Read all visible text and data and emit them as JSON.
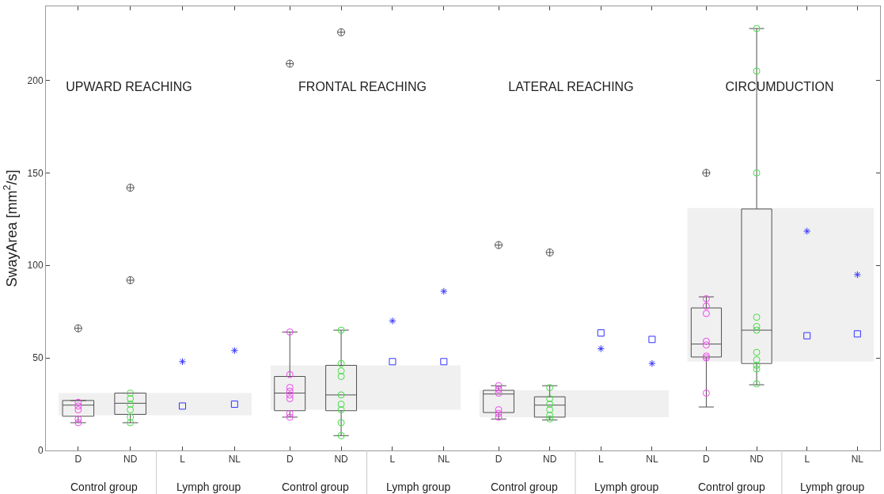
{
  "chart_data": [
    {
      "type": "box",
      "title": "UPWARD REACHING",
      "ylabel": "SwayArea [mm$^{2}$/s]",
      "categories": [
        "D",
        "ND",
        "L",
        "NL"
      ],
      "ylim": [
        0,
        240
      ],
      "yticks": [
        0,
        50,
        100,
        150,
        200
      ],
      "grid": false,
      "annotations": [
        "Control group",
        "Lymph group"
      ],
      "bands": [
        {
          "axis": "y",
          "from": 19,
          "to": 31,
          "color": "#f0f0f0"
        }
      ],
      "series": [
        {
          "color": "#505050",
          "boxes": [
            {
              "low": 15,
              "q1": 18.5,
              "median": 24.5,
              "q3": 27,
              "high": 27,
              "outliers": [
                66
              ]
            },
            {
              "low": 15,
              "q1": 19.5,
              "median": 25.5,
              "q3": 31,
              "high": 31,
              "outliers": [
                92,
                142
              ]
            },
            null,
            null
          ]
        },
        {
          "type": "scatter",
          "color": "#ee44ee",
          "marker": "circle",
          "x": [
            "D",
            "D",
            "D",
            "D",
            "D"
          ],
          "values": [
            26,
            24,
            22,
            17,
            15
          ]
        },
        {
          "type": "scatter",
          "color": "#44dd44",
          "marker": "circle",
          "x": [
            "ND",
            "ND",
            "ND",
            "ND",
            "ND",
            "ND"
          ],
          "values": [
            31,
            28,
            25,
            22,
            18,
            15
          ]
        },
        {
          "type": "scatter",
          "color": "#3333ff",
          "marker": "cross",
          "x": [
            "L",
            "NL"
          ],
          "values": [
            48,
            54
          ]
        },
        {
          "type": "scatter",
          "color": "#3333ff",
          "marker": "square",
          "x": [
            "L",
            "NL"
          ],
          "values": [
            24,
            25
          ]
        }
      ]
    },
    {
      "type": "box",
      "title": "FRONTAL REACHING",
      "categories": [
        "D",
        "ND",
        "L",
        "NL"
      ],
      "ylim": [
        0,
        240
      ],
      "yticks": [
        0,
        50,
        100,
        150,
        200
      ],
      "tick_labels": "x",
      "grid": false,
      "annotations": [
        "Control group",
        "Lymph group"
      ],
      "bands": [
        {
          "axis": "y",
          "from": 22,
          "to": 46,
          "color": "#f0f0f0"
        }
      ],
      "series": [
        {
          "color": "#505050",
          "boxes": [
            {
              "low": 18,
              "q1": 21.5,
              "median": 31,
              "q3": 40,
              "high": 64,
              "outliers": [
                209
              ]
            },
            {
              "low": 8,
              "q1": 21.5,
              "median": 30,
              "q3": 46,
              "high": 65,
              "outliers": [
                226
              ]
            },
            null,
            null
          ]
        },
        {
          "type": "scatter",
          "color": "#ee44ee",
          "marker": "circle",
          "x": [
            "D",
            "D",
            "D",
            "D",
            "D",
            "D",
            "D",
            "D"
          ],
          "values": [
            64,
            41,
            34,
            32,
            30,
            28,
            20,
            18
          ]
        },
        {
          "type": "scatter",
          "color": "#44dd44",
          "marker": "circle",
          "x": [
            "ND",
            "ND",
            "ND",
            "ND",
            "ND",
            "ND",
            "ND",
            "ND",
            "ND"
          ],
          "values": [
            65,
            47,
            43,
            40,
            30,
            25,
            22,
            15,
            8
          ]
        },
        {
          "type": "scatter",
          "color": "#3333ff",
          "marker": "cross",
          "x": [
            "L",
            "NL"
          ],
          "values": [
            70,
            86
          ]
        },
        {
          "type": "scatter",
          "color": "#3333ff",
          "marker": "square",
          "x": [
            "L",
            "NL"
          ],
          "values": [
            48,
            48
          ]
        }
      ]
    },
    {
      "type": "box",
      "title": "LATERAL REACHING",
      "categories": [
        "D",
        "ND",
        "L",
        "NL"
      ],
      "ylim": [
        0,
        240
      ],
      "yticks": [
        0,
        50,
        100,
        150,
        200
      ],
      "tick_labels": "x",
      "grid": false,
      "annotations": [
        "Control group",
        "Lymph group"
      ],
      "bands": [
        {
          "axis": "y",
          "from": 18,
          "to": 32.5,
          "color": "#f0f0f0"
        }
      ],
      "series": [
        {
          "color": "#505050",
          "boxes": [
            {
              "low": 17,
              "q1": 20.5,
              "median": 30.5,
              "q3": 32.5,
              "high": 35,
              "outliers": [
                111
              ]
            },
            {
              "low": 16.5,
              "q1": 18,
              "median": 24.5,
              "q3": 29,
              "high": 35,
              "outliers": [
                107
              ]
            },
            null,
            null
          ]
        },
        {
          "type": "scatter",
          "color": "#ee44ee",
          "marker": "circle",
          "x": [
            "D",
            "D",
            "D",
            "D",
            "D",
            "D"
          ],
          "values": [
            35,
            33,
            31,
            22,
            20,
            18
          ]
        },
        {
          "type": "scatter",
          "color": "#44dd44",
          "marker": "circle",
          "x": [
            "ND",
            "ND",
            "ND",
            "ND",
            "ND",
            "ND"
          ],
          "values": [
            34,
            28,
            25,
            22,
            19,
            17
          ]
        },
        {
          "type": "scatter",
          "color": "#3333ff",
          "marker": "cross",
          "x": [
            "L",
            "NL"
          ],
          "values": [
            55,
            47
          ]
        },
        {
          "type": "scatter",
          "color": "#3333ff",
          "marker": "square",
          "x": [
            "L",
            "NL"
          ],
          "values": [
            63.5,
            60
          ]
        }
      ]
    },
    {
      "type": "box",
      "title": "CIRCUMDUCTION",
      "categories": [
        "D",
        "ND",
        "L",
        "NL"
      ],
      "ylim": [
        0,
        240
      ],
      "yticks": [
        0,
        50,
        100,
        150,
        200
      ],
      "tick_labels": "x",
      "grid": false,
      "annotations": [
        "Control group",
        "Lymph group"
      ],
      "bands": [
        {
          "axis": "y",
          "from": 48,
          "to": 131,
          "color": "#f0f0f0"
        }
      ],
      "series": [
        {
          "color": "#505050",
          "boxes": [
            {
              "low": 23.5,
              "q1": 50.5,
              "median": 57.5,
              "q3": 77,
              "high": 83,
              "outliers": [
                150
              ]
            },
            {
              "low": 35.5,
              "q1": 47,
              "median": 65,
              "q3": 130.5,
              "high": 228
            },
            null,
            null
          ]
        },
        {
          "type": "scatter",
          "color": "#ee44ee",
          "marker": "circle",
          "x": [
            "D",
            "D",
            "D",
            "D",
            "D",
            "D",
            "D",
            "D"
          ],
          "values": [
            82,
            78,
            74,
            59,
            57,
            51,
            50,
            31
          ]
        },
        {
          "type": "scatter",
          "color": "#44dd44",
          "marker": "circle",
          "x": [
            "ND",
            "ND",
            "ND",
            "ND",
            "ND",
            "ND",
            "ND",
            "ND",
            "ND",
            "ND",
            "ND"
          ],
          "values": [
            228,
            205,
            150,
            72,
            67,
            65,
            53,
            49,
            46,
            44,
            36
          ]
        },
        {
          "type": "scatter",
          "color": "#3333ff",
          "marker": "cross",
          "x": [
            "L",
            "NL"
          ],
          "values": [
            118.5,
            95
          ]
        },
        {
          "type": "scatter",
          "color": "#3333ff",
          "marker": "square",
          "x": [
            "L",
            "NL"
          ],
          "values": [
            62,
            63
          ]
        }
      ]
    }
  ]
}
